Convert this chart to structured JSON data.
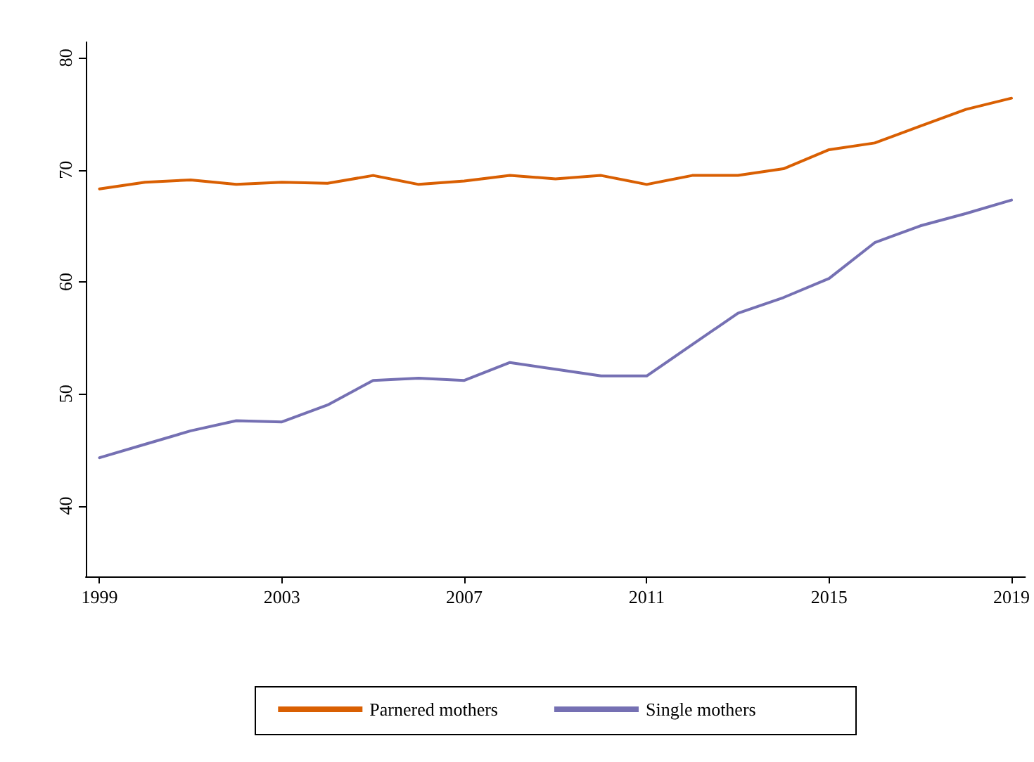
{
  "chart_data": {
    "type": "line",
    "x": [
      1999,
      2000,
      2001,
      2002,
      2003,
      2004,
      2005,
      2006,
      2007,
      2008,
      2009,
      2010,
      2011,
      2012,
      2013,
      2014,
      2015,
      2016,
      2017,
      2018,
      2019
    ],
    "series": [
      {
        "name": "Parnered mothers",
        "color": "#d95f02",
        "values": [
          68.3,
          68.9,
          69.1,
          68.7,
          68.9,
          68.8,
          69.5,
          68.7,
          69.0,
          69.5,
          69.2,
          69.5,
          68.7,
          69.5,
          69.5,
          70.1,
          71.8,
          72.4,
          73.9,
          75.4,
          76.4
        ]
      },
      {
        "name": "Single mothers",
        "color": "#7570b3",
        "values": [
          44.3,
          45.5,
          46.7,
          47.6,
          47.5,
          49.0,
          51.2,
          51.4,
          51.2,
          52.8,
          52.2,
          51.6,
          51.6,
          54.4,
          57.2,
          58.6,
          60.3,
          63.5,
          65.0,
          66.1,
          67.3
        ]
      }
    ],
    "xlim": [
      1998.7,
      2019.3
    ],
    "xticks": [
      1999,
      2003,
      2007,
      2011,
      2015,
      2019
    ],
    "ylim": [
      33.7,
      81.4
    ],
    "yticks": [
      40,
      50,
      60,
      70,
      80
    ],
    "grid": false,
    "legend": "bottom",
    "marker": "none",
    "line_style": "solid"
  }
}
